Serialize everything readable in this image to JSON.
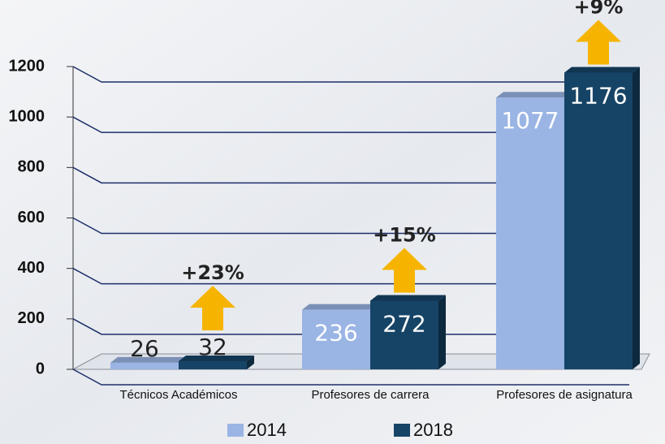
{
  "chart_data": {
    "type": "bar3d",
    "categories": [
      "Técnicos Académicos",
      "Profesores de carrera",
      "Profesores de asignatura"
    ],
    "series": [
      {
        "name": "2014",
        "color": "#9ab4e4",
        "values": [
          26,
          236,
          1077
        ]
      },
      {
        "name": "2018",
        "color": "#164466",
        "values": [
          32,
          272,
          1176
        ]
      }
    ],
    "annotations": [
      "+23%",
      "+15%",
      "+9%"
    ],
    "ylim": [
      0,
      1200
    ],
    "yticks": [
      0,
      200,
      400,
      600,
      800,
      1000,
      1200
    ],
    "grid": true
  }
}
